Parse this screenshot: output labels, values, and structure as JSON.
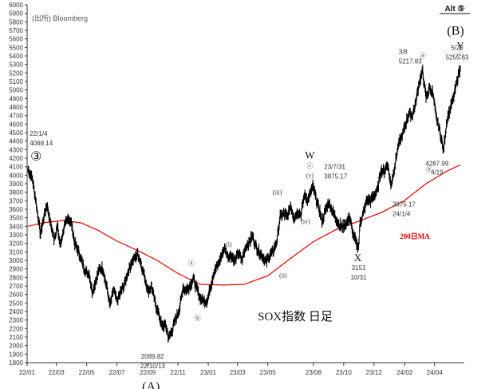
{
  "chart_data": {
    "type": "line",
    "title": "SOX指数 日足",
    "source": "(出所) Bloomberg",
    "corner_label": "Alt ⑤",
    "ylim": [
      1800,
      6000
    ],
    "y_ticks": [
      1800,
      1900,
      2000,
      2100,
      2200,
      2300,
      2400,
      2500,
      2600,
      2700,
      2800,
      2900,
      3000,
      3100,
      3200,
      3300,
      3400,
      3500,
      3600,
      3700,
      3800,
      3900,
      4000,
      4100,
      4200,
      4300,
      4400,
      4500,
      4600,
      4700,
      4800,
      4900,
      5000,
      5100,
      5200,
      5300,
      5400,
      5500,
      5600,
      5700,
      5800,
      5900,
      6000
    ],
    "x_ticks": [
      "22/01",
      "22/03",
      "22/05",
      "22/07",
      "22/09",
      "22/11",
      "23/01",
      "23/03",
      "23/05",
      "23/08",
      "23/10",
      "23/12",
      "24/02",
      "24/04"
    ],
    "x_range": [
      "2022-01-01",
      "2024-05-31"
    ],
    "series": [
      {
        "kind": "price",
        "color": "#000000",
        "points": [
          [
            "2022-01-03",
            4068
          ],
          [
            "2022-01-12",
            3950
          ],
          [
            "2022-01-20",
            3640
          ],
          [
            "2022-01-28",
            3300
          ],
          [
            "2022-02-04",
            3520
          ],
          [
            "2022-02-10",
            3660
          ],
          [
            "2022-02-16",
            3470
          ],
          [
            "2022-02-24",
            3260
          ],
          [
            "2022-03-03",
            3390
          ],
          [
            "2022-03-09",
            3180
          ],
          [
            "2022-03-16",
            3380
          ],
          [
            "2022-03-25",
            3500
          ],
          [
            "2022-03-31",
            3440
          ],
          [
            "2022-04-07",
            3200
          ],
          [
            "2022-04-14",
            3110
          ],
          [
            "2022-04-22",
            2970
          ],
          [
            "2022-04-29",
            2860
          ],
          [
            "2022-05-06",
            2850
          ],
          [
            "2022-05-12",
            2630
          ],
          [
            "2022-05-20",
            2770
          ],
          [
            "2022-05-27",
            2910
          ],
          [
            "2022-06-03",
            2900
          ],
          [
            "2022-06-10",
            2700
          ],
          [
            "2022-06-17",
            2470
          ],
          [
            "2022-06-24",
            2660
          ],
          [
            "2022-07-01",
            2520
          ],
          [
            "2022-07-08",
            2620
          ],
          [
            "2022-07-15",
            2700
          ],
          [
            "2022-07-22",
            2840
          ],
          [
            "2022-07-29",
            2960
          ],
          [
            "2022-08-05",
            3020
          ],
          [
            "2022-08-12",
            3090
          ],
          [
            "2022-08-19",
            2950
          ],
          [
            "2022-08-26",
            2800
          ],
          [
            "2022-09-02",
            2640
          ],
          [
            "2022-09-09",
            2700
          ],
          [
            "2022-09-16",
            2500
          ],
          [
            "2022-09-23",
            2380
          ],
          [
            "2022-09-30",
            2220
          ],
          [
            "2022-10-07",
            2250
          ],
          [
            "2022-10-13",
            2090
          ],
          [
            "2022-10-21",
            2190
          ],
          [
            "2022-10-28",
            2320
          ],
          [
            "2022-11-04",
            2430
          ],
          [
            "2022-11-11",
            2680
          ],
          [
            "2022-11-18",
            2650
          ],
          [
            "2022-11-25",
            2700
          ],
          [
            "2022-12-02",
            2790
          ],
          [
            "2022-12-09",
            2660
          ],
          [
            "2022-12-16",
            2560
          ],
          [
            "2022-12-23",
            2520
          ],
          [
            "2022-12-30",
            2530
          ],
          [
            "2023-01-06",
            2700
          ],
          [
            "2023-01-13",
            2870
          ],
          [
            "2023-01-20",
            2940
          ],
          [
            "2023-01-27",
            3040
          ],
          [
            "2023-02-03",
            3150
          ],
          [
            "2023-02-10",
            3040
          ],
          [
            "2023-02-17",
            3060
          ],
          [
            "2023-02-24",
            2990
          ],
          [
            "2023-03-03",
            3090
          ],
          [
            "2023-03-10",
            3000
          ],
          [
            "2023-03-17",
            3150
          ],
          [
            "2023-03-24",
            3210
          ],
          [
            "2023-03-31",
            3290
          ],
          [
            "2023-04-06",
            3180
          ],
          [
            "2023-04-14",
            3100
          ],
          [
            "2023-04-21",
            3040
          ],
          [
            "2023-04-28",
            2980
          ],
          [
            "2023-05-05",
            3060
          ],
          [
            "2023-05-12",
            3110
          ],
          [
            "2023-05-19",
            3220
          ],
          [
            "2023-05-26",
            3510
          ],
          [
            "2023-06-02",
            3550
          ],
          [
            "2023-06-09",
            3510
          ],
          [
            "2023-06-16",
            3640
          ],
          [
            "2023-06-23",
            3500
          ],
          [
            "2023-06-30",
            3570
          ],
          [
            "2023-07-07",
            3540
          ],
          [
            "2023-07-14",
            3770
          ],
          [
            "2023-07-21",
            3700
          ],
          [
            "2023-07-31",
            3875
          ],
          [
            "2023-08-07",
            3700
          ],
          [
            "2023-08-14",
            3580
          ],
          [
            "2023-08-18",
            3450
          ],
          [
            "2023-08-25",
            3580
          ],
          [
            "2023-09-01",
            3680
          ],
          [
            "2023-09-08",
            3580
          ],
          [
            "2023-09-15",
            3500
          ],
          [
            "2023-09-22",
            3420
          ],
          [
            "2023-09-29",
            3390
          ],
          [
            "2023-10-06",
            3430
          ],
          [
            "2023-10-13",
            3510
          ],
          [
            "2023-10-20",
            3300
          ],
          [
            "2023-10-27",
            3200
          ],
          [
            "2023-10-31",
            3151
          ],
          [
            "2023-11-03",
            3450
          ],
          [
            "2023-11-10",
            3560
          ],
          [
            "2023-11-17",
            3710
          ],
          [
            "2023-11-24",
            3700
          ],
          [
            "2023-12-01",
            3760
          ],
          [
            "2023-12-08",
            3820
          ],
          [
            "2023-12-15",
            4060
          ],
          [
            "2023-12-22",
            4040
          ],
          [
            "2023-12-29",
            4130
          ],
          [
            "2024-01-04",
            3875
          ],
          [
            "2024-01-12",
            4110
          ],
          [
            "2024-01-19",
            4350
          ],
          [
            "2024-01-26",
            4450
          ],
          [
            "2024-02-02",
            4580
          ],
          [
            "2024-02-09",
            4720
          ],
          [
            "2024-02-16",
            4700
          ],
          [
            "2024-02-23",
            4840
          ],
          [
            "2024-03-01",
            5080
          ],
          [
            "2024-03-08",
            5218
          ],
          [
            "2024-03-15",
            4900
          ],
          [
            "2024-03-22",
            5020
          ],
          [
            "2024-03-28",
            4980
          ],
          [
            "2024-04-04",
            4700
          ],
          [
            "2024-04-12",
            4510
          ],
          [
            "2024-04-19",
            4288
          ],
          [
            "2024-04-26",
            4650
          ],
          [
            "2024-05-03",
            4780
          ],
          [
            "2024-05-10",
            4920
          ],
          [
            "2024-05-17",
            5130
          ],
          [
            "2024-05-23",
            5256
          ]
        ]
      },
      {
        "name": "200日MA",
        "kind": "ma",
        "color": "#e00000",
        "points": [
          [
            "2022-01-03",
            3400
          ],
          [
            "2022-02-01",
            3440
          ],
          [
            "2022-03-15",
            3470
          ],
          [
            "2022-04-20",
            3440
          ],
          [
            "2022-05-25",
            3350
          ],
          [
            "2022-06-30",
            3230
          ],
          [
            "2022-08-10",
            3120
          ],
          [
            "2022-09-20",
            3000
          ],
          [
            "2022-10-31",
            2850
          ],
          [
            "2022-12-15",
            2720
          ],
          [
            "2023-01-31",
            2710
          ],
          [
            "2023-03-15",
            2720
          ],
          [
            "2023-05-01",
            2820
          ],
          [
            "2023-06-15",
            3020
          ],
          [
            "2023-08-01",
            3220
          ],
          [
            "2023-09-15",
            3360
          ],
          [
            "2023-10-31",
            3460
          ],
          [
            "2023-12-15",
            3560
          ],
          [
            "2024-01-31",
            3700
          ],
          [
            "2024-03-15",
            3900
          ],
          [
            "2024-04-30",
            4060
          ],
          [
            "2024-05-23",
            4120
          ]
        ]
      }
    ],
    "annotations": [
      {
        "id": "a1",
        "date": "2022-01-03",
        "y": 4068,
        "text": "22/1/4"
      },
      {
        "id": "a2",
        "date": "2022-01-03",
        "y": 4068,
        "text": "4068.14"
      },
      {
        "id": "a3",
        "date": "2022-10-13",
        "y": 2090,
        "text": "2089.82"
      },
      {
        "id": "a4",
        "date": "2022-10-13",
        "y": 2090,
        "text": "22/10/13"
      },
      {
        "id": "a5",
        "date": "2023-07-31",
        "y": 3875,
        "text": "23/7/31"
      },
      {
        "id": "a6",
        "date": "2023-07-31",
        "y": 3875,
        "text": "3875.17"
      },
      {
        "id": "a7",
        "date": "2023-10-31",
        "y": 3151,
        "text": "3151"
      },
      {
        "id": "a8",
        "date": "2023-10-31",
        "y": 3151,
        "text": "10/31"
      },
      {
        "id": "a9",
        "date": "2024-01-04",
        "y": 3875,
        "text": "3875.17"
      },
      {
        "id": "a10",
        "date": "2024-01-04",
        "y": 3875,
        "text": "24/1/4"
      },
      {
        "id": "a11",
        "date": "2024-03-08",
        "y": 5218,
        "text": "3/8"
      },
      {
        "id": "a12",
        "date": "2024-03-08",
        "y": 5218,
        "text": "5217.83"
      },
      {
        "id": "a13",
        "date": "2024-04-19",
        "y": 4288,
        "text": "4287.99"
      },
      {
        "id": "a14",
        "date": "2024-04-19",
        "y": 4288,
        "text": "4/19"
      },
      {
        "id": "a15",
        "date": "2024-05-23",
        "y": 5256,
        "text": "5/23"
      },
      {
        "id": "a16",
        "date": "2024-05-23",
        "y": 5256,
        "text": "5255.63"
      }
    ],
    "wave_labels": [
      {
        "id": "w1",
        "text": "③",
        "date": "2022-01-03",
        "y": 4068,
        "size": "big"
      },
      {
        "id": "w2",
        "text": "(A)",
        "date": "2022-10-13",
        "y": 2090,
        "size": "big"
      },
      {
        "id": "w3",
        "text": "ⓐ",
        "date": "2022-11-20",
        "y": 2700,
        "size": "sub"
      },
      {
        "id": "w4",
        "text": "ⓑ",
        "date": "2022-12-20",
        "y": 2520,
        "size": "sub"
      },
      {
        "id": "w5",
        "text": "(i)",
        "date": "2023-01-20",
        "y": 2940,
        "size": "sub"
      },
      {
        "id": "w6",
        "text": "(ii)",
        "date": "2023-04-20",
        "y": 3040,
        "size": "sub"
      },
      {
        "id": "w7",
        "text": "(iii)",
        "date": "2023-06-05",
        "y": 3550,
        "size": "sub"
      },
      {
        "id": "w8",
        "text": "(iv)",
        "date": "2023-06-30",
        "y": 3570,
        "size": "sub"
      },
      {
        "id": "w9",
        "text": "(v)",
        "date": "2023-07-20",
        "y": 3875,
        "size": "sub"
      },
      {
        "id": "w10",
        "text": "ⓒ",
        "date": "2023-07-20",
        "y": 3875,
        "size": "sub"
      },
      {
        "id": "w11",
        "text": "W",
        "date": "2023-07-20",
        "y": 3875,
        "size": "mid"
      },
      {
        "id": "w12",
        "text": "X",
        "date": "2023-10-31",
        "y": 3151,
        "size": "mid"
      },
      {
        "id": "w13",
        "text": "ⓐ",
        "date": "2024-03-08",
        "y": 5218,
        "size": "sub"
      },
      {
        "id": "w14",
        "text": "ⓑ",
        "date": "2024-04-19",
        "y": 4288,
        "size": "sub"
      },
      {
        "id": "w15",
        "text": "ⓒ",
        "date": "2024-05-23",
        "y": 5256,
        "size": "sub"
      },
      {
        "id": "w16",
        "text": "Y",
        "date": "2024-05-23",
        "y": 5256,
        "size": "mid"
      },
      {
        "id": "w17",
        "text": "(B)",
        "date": "2024-05-23",
        "y": 5256,
        "size": "big"
      }
    ],
    "grid": false,
    "legend": "inline"
  }
}
